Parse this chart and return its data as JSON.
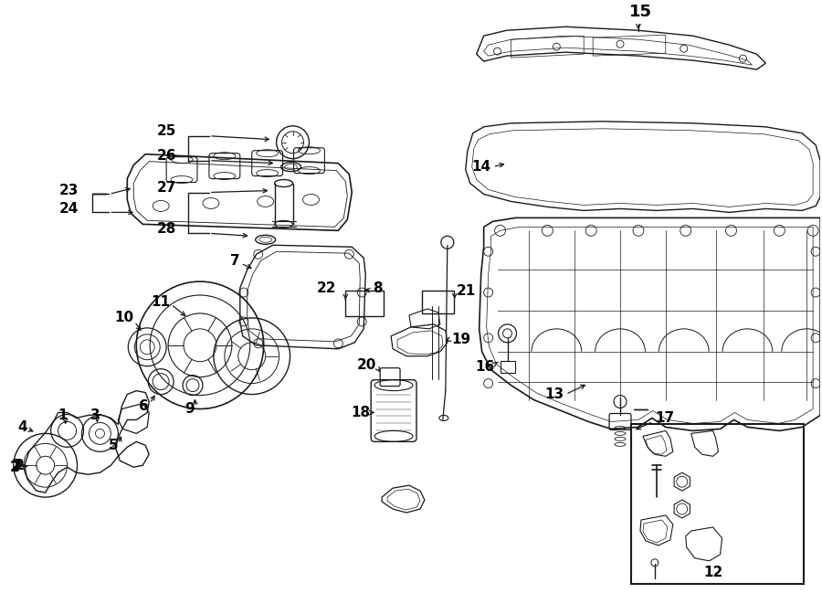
{
  "bg_color": "#ffffff",
  "line_color": "#1a1a1a",
  "label_color": "#000000",
  "lw": 1.0,
  "figsize": [
    9.0,
    6.61
  ],
  "dpi": 100
}
